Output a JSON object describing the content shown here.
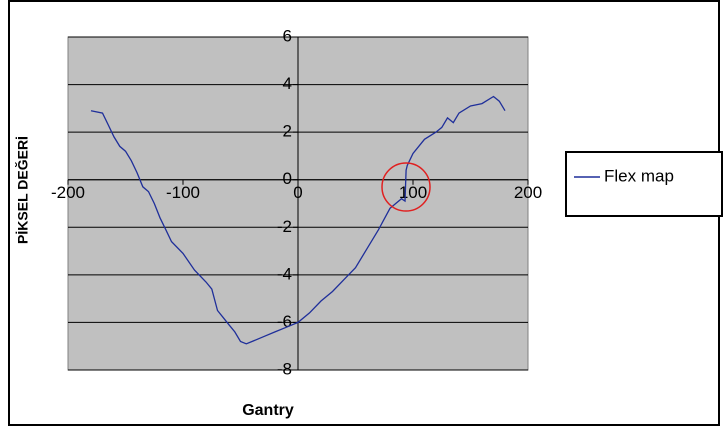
{
  "chart_data": {
    "type": "line",
    "x_label": "Gantry",
    "y_label": "PİKSEL DEĞERİ",
    "x": [
      -180,
      -170,
      -165,
      -160,
      -155,
      -150,
      -145,
      -140,
      -135,
      -130,
      -125,
      -120,
      -115,
      -110,
      -100,
      -90,
      -80,
      -75,
      -70,
      -65,
      -60,
      -55,
      -50,
      -45,
      -40,
      -30,
      -20,
      -10,
      0,
      10,
      20,
      30,
      40,
      50,
      60,
      70,
      80,
      90,
      93,
      94,
      95,
      100,
      110,
      120,
      125,
      130,
      135,
      140,
      150,
      160,
      170,
      175,
      180
    ],
    "series": [
      {
        "name": "Flex map",
        "color": "#1f2f9a",
        "values": [
          2.9,
          2.8,
          2.3,
          1.8,
          1.4,
          1.2,
          0.8,
          0.3,
          -0.3,
          -0.5,
          -1.0,
          -1.6,
          -2.1,
          -2.6,
          -3.1,
          -3.8,
          -4.3,
          -4.6,
          -5.5,
          -5.8,
          -6.1,
          -6.4,
          -6.8,
          -6.9,
          -6.8,
          -6.6,
          -6.4,
          -6.2,
          -6.0,
          -5.6,
          -5.1,
          -4.7,
          -4.2,
          -3.7,
          -2.9,
          -2.1,
          -1.2,
          -0.8,
          -0.9,
          0.4,
          0.6,
          1.1,
          1.7,
          2.0,
          2.2,
          2.6,
          2.4,
          2.8,
          3.1,
          3.2,
          3.5,
          3.3,
          2.9
        ]
      }
    ],
    "xlim": [
      -200,
      200
    ],
    "xticks": [
      -200,
      -100,
      0,
      100,
      200
    ],
    "ylim": [
      -8,
      6
    ],
    "yticks": [
      -8,
      -6,
      -4,
      -2,
      0,
      2,
      4,
      6
    ],
    "grid": true,
    "legend": "right"
  }
}
